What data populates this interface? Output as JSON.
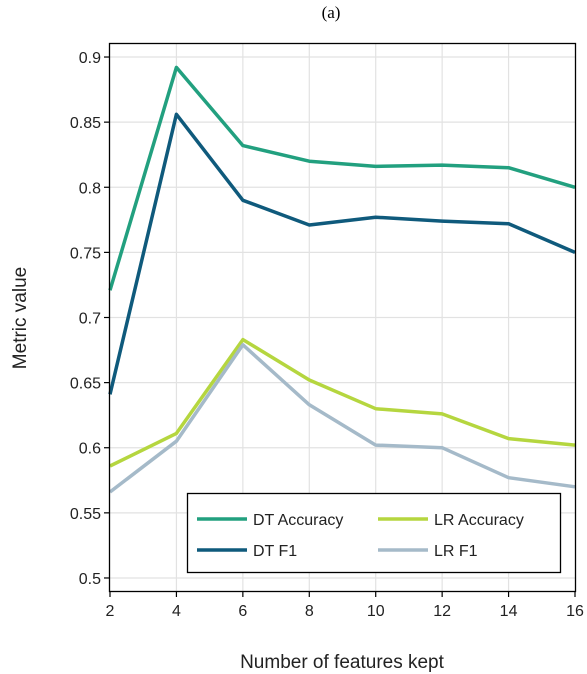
{
  "figure": {
    "caption": "(a)"
  },
  "chart_data": {
    "type": "line",
    "title": "",
    "xlabel": "Number of features kept",
    "ylabel": "Metric value",
    "x": [
      2,
      4,
      6,
      8,
      10,
      12,
      14,
      16
    ],
    "xlim": [
      2,
      16
    ],
    "ylim": [
      0.49,
      0.91
    ],
    "x_ticks": [
      2,
      4,
      6,
      8,
      10,
      12,
      14,
      16
    ],
    "y_ticks": [
      0.5,
      0.55,
      0.6,
      0.65,
      0.7,
      0.75,
      0.8,
      0.85,
      0.9
    ],
    "x_tick_labels": [
      "2",
      "4",
      "6",
      "8",
      "10",
      "12",
      "14",
      "16"
    ],
    "y_tick_labels": [
      "0.5",
      "0.55",
      "0.6",
      "0.65",
      "0.7",
      "0.75",
      "0.8",
      "0.85",
      "0.9"
    ],
    "grid": true,
    "legend_position": "bottom-right",
    "series": [
      {
        "name": "DT Accuracy",
        "color": "#22a07f",
        "values": [
          0.721,
          0.892,
          0.832,
          0.82,
          0.816,
          0.817,
          0.815,
          0.8
        ]
      },
      {
        "name": "DT F1",
        "color": "#0f5a7c",
        "values": [
          0.641,
          0.856,
          0.79,
          0.771,
          0.777,
          0.774,
          0.772,
          0.75
        ]
      },
      {
        "name": "LR Accuracy",
        "color": "#b5d63f",
        "values": [
          0.586,
          0.611,
          0.683,
          0.652,
          0.63,
          0.626,
          0.607,
          0.602
        ]
      },
      {
        "name": "LR F1",
        "color": "#a5bac9",
        "values": [
          0.566,
          0.605,
          0.679,
          0.633,
          0.602,
          0.6,
          0.577,
          0.57
        ]
      }
    ]
  }
}
